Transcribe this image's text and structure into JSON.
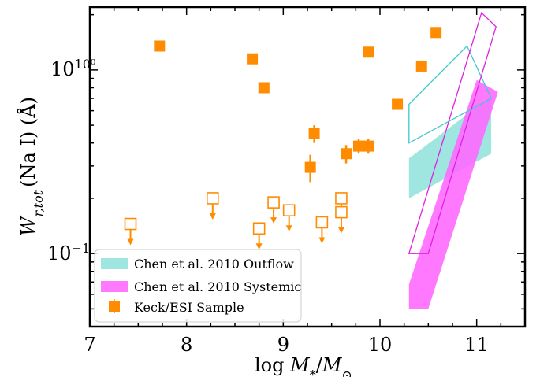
{
  "chart_data": {
    "type": "scatter",
    "xlabel_main": "log",
    "xlabel_var": "M",
    "xlabel_sub": "*",
    "xlabel_slash": "/",
    "xlabel_var2": "M",
    "xlabel_sun": "⊙",
    "ylabel_main": "W",
    "ylabel_sub": "r,tot",
    "ylabel_rest": "(Na I) (Å)",
    "xlim": [
      7,
      11.5
    ],
    "ylim": [
      0.04,
      2.2
    ],
    "yscale": "log",
    "x_ticks": [
      7,
      8,
      9,
      10,
      11
    ],
    "x_tick_labels": [
      "7",
      "8",
      "9",
      "10",
      "11"
    ],
    "y_tick_labels": {
      "major": [
        "10⁰",
        "10⁻¹"
      ]
    },
    "legend": {
      "placement": "bottom-left",
      "entries": [
        {
          "label": "Chen et al. 2010 Outflow",
          "color": "#9fe5e0"
        },
        {
          "label": "Chen et al. 2010 Systemic",
          "color": "#ff66ff"
        },
        {
          "label": "Keck/ESI Sample",
          "color": "#ff8c00"
        }
      ]
    },
    "series": [
      {
        "name": "Keck/ESI Sample",
        "kind": "detections",
        "points": [
          {
            "x": 7.72,
            "y": 1.35,
            "err": 0.03
          },
          {
            "x": 8.68,
            "y": 1.15,
            "err": 0.03
          },
          {
            "x": 8.8,
            "y": 0.8,
            "err": 0.02
          },
          {
            "x": 9.28,
            "y": 0.295,
            "err": 0.05
          },
          {
            "x": 9.32,
            "y": 0.45,
            "err": 0.05
          },
          {
            "x": 9.65,
            "y": 0.35,
            "err": 0.04
          },
          {
            "x": 9.78,
            "y": 0.385,
            "err": 0.035
          },
          {
            "x": 9.88,
            "y": 0.385,
            "err": 0.035
          },
          {
            "x": 9.88,
            "y": 1.25,
            "err": 0.03
          },
          {
            "x": 10.18,
            "y": 0.65,
            "err": 0.02
          },
          {
            "x": 10.43,
            "y": 1.05,
            "err": 0.03
          },
          {
            "x": 10.58,
            "y": 1.6,
            "err": 0.03
          }
        ]
      },
      {
        "name": "Keck/ESI Sample",
        "kind": "upper_limits",
        "points": [
          {
            "x": 7.42,
            "y": 0.145
          },
          {
            "x": 8.27,
            "y": 0.2
          },
          {
            "x": 8.75,
            "y": 0.137
          },
          {
            "x": 8.9,
            "y": 0.19
          },
          {
            "x": 9.06,
            "y": 0.172
          },
          {
            "x": 9.4,
            "y": 0.148
          },
          {
            "x": 9.6,
            "y": 0.2
          },
          {
            "x": 9.6,
            "y": 0.168
          }
        ]
      }
    ],
    "regions": {
      "outflow_filled": [
        [
          10.3,
          0.33
        ],
        [
          11.15,
          0.72
        ],
        [
          11.15,
          0.35
        ],
        [
          10.3,
          0.2
        ]
      ],
      "outflow_outline": [
        [
          10.3,
          0.65
        ],
        [
          10.9,
          1.35
        ],
        [
          11.15,
          0.7
        ],
        [
          10.3,
          0.4
        ]
      ],
      "systemic_filled": [
        [
          10.3,
          0.068
        ],
        [
          11.0,
          0.88
        ],
        [
          11.22,
          0.76
        ],
        [
          10.5,
          0.05
        ],
        [
          10.3,
          0.05
        ]
      ],
      "systemic_outline": [
        [
          10.3,
          0.1
        ],
        [
          11.05,
          2.05
        ],
        [
          11.2,
          1.72
        ],
        [
          10.5,
          0.1
        ]
      ]
    }
  },
  "colors": {
    "marker": "#ff8c00",
    "outflow": "#9fe5e0",
    "outflow_line": "#3fcaca",
    "systemic": "#ff66ff",
    "systemic_line": "#e020e0"
  }
}
